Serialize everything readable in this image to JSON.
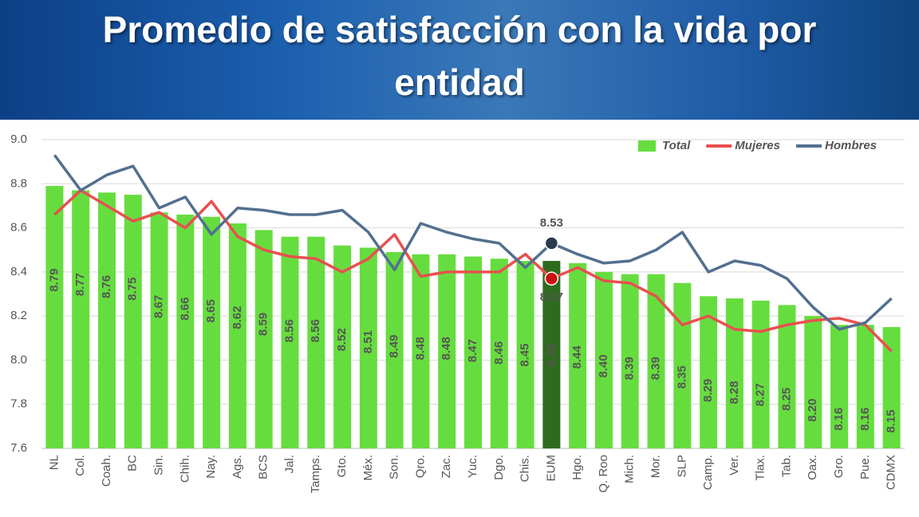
{
  "chart_data": {
    "type": "bar",
    "title": "Promedio de satisfacción con la vida por entidad",
    "categories": [
      "NL",
      "Col.",
      "Coah.",
      "BC",
      "Sin.",
      "Chih.",
      "Nay.",
      "Ags.",
      "BCS",
      "Jal.",
      "Tamps.",
      "Gto.",
      "Méx.",
      "Son.",
      "Qro.",
      "Zac.",
      "Yuc.",
      "Dgo.",
      "Chis.",
      "EUM",
      "Hgo.",
      "Q. Roo",
      "Mich.",
      "Mor.",
      "SLP",
      "Camp.",
      "Ver.",
      "Tlax.",
      "Tab.",
      "Oax.",
      "Gro.",
      "Pue.",
      "CDMX"
    ],
    "series": [
      {
        "name": "Total",
        "type": "bar",
        "color": "#66dd3f",
        "colors": [
          "#66dd3f",
          "#66dd3f",
          "#66dd3f",
          "#66dd3f",
          "#66dd3f",
          "#66dd3f",
          "#66dd3f",
          "#66dd3f",
          "#66dd3f",
          "#66dd3f",
          "#66dd3f",
          "#66dd3f",
          "#66dd3f",
          "#66dd3f",
          "#66dd3f",
          "#66dd3f",
          "#66dd3f",
          "#66dd3f",
          "#66dd3f",
          "#2f6b1e",
          "#66dd3f",
          "#66dd3f",
          "#66dd3f",
          "#66dd3f",
          "#66dd3f",
          "#66dd3f",
          "#66dd3f",
          "#66dd3f",
          "#66dd3f",
          "#66dd3f",
          "#66dd3f",
          "#66dd3f",
          "#66dd3f"
        ],
        "values": [
          8.79,
          8.77,
          8.76,
          8.75,
          8.67,
          8.66,
          8.65,
          8.62,
          8.59,
          8.56,
          8.56,
          8.52,
          8.51,
          8.49,
          8.48,
          8.48,
          8.47,
          8.46,
          8.45,
          8.45,
          8.44,
          8.4,
          8.39,
          8.39,
          8.35,
          8.29,
          8.28,
          8.27,
          8.25,
          8.2,
          8.16,
          8.16,
          8.15
        ],
        "value_labels": [
          "8.79",
          "8.77",
          "8.76",
          "8.75",
          "8.67",
          "8.66",
          "8.65",
          "8.62",
          "8.59",
          "8.56",
          "8.56",
          "8.52",
          "8.51",
          "8.49",
          "8.48",
          "8.48",
          "8.47",
          "8.46",
          "8.45",
          "8.45",
          "8.44",
          "8.40",
          "8.39",
          "8.39",
          "8.35",
          "8.29",
          "8.28",
          "8.27",
          "8.25",
          "8.20",
          "8.16",
          "8.16",
          "8.15"
        ]
      },
      {
        "name": "Mujeres",
        "type": "line",
        "color": "#e8504f",
        "values": [
          8.66,
          8.77,
          8.7,
          8.63,
          8.67,
          8.6,
          8.72,
          8.56,
          8.5,
          8.47,
          8.46,
          8.4,
          8.46,
          8.57,
          8.38,
          8.4,
          8.4,
          8.4,
          8.48,
          8.37,
          8.42,
          8.36,
          8.35,
          8.29,
          8.16,
          8.2,
          8.14,
          8.13,
          8.16,
          8.18,
          8.19,
          8.16,
          8.04
        ]
      },
      {
        "name": "Hombres",
        "type": "line",
        "color": "#52708f",
        "values": [
          8.93,
          8.77,
          8.84,
          8.88,
          8.69,
          8.74,
          8.57,
          8.69,
          8.68,
          8.66,
          8.66,
          8.68,
          8.58,
          8.41,
          8.62,
          8.58,
          8.55,
          8.53,
          8.42,
          8.53,
          8.48,
          8.44,
          8.45,
          8.5,
          8.58,
          8.4,
          8.45,
          8.43,
          8.37,
          8.24,
          8.14,
          8.17,
          8.28
        ]
      }
    ],
    "ylim": [
      7.6,
      9.0
    ],
    "yticks": [
      7.6,
      7.8,
      {
        "value": 8,
        "label": "8.0"
      },
      8.2,
      8.4,
      8.6,
      8.8,
      {
        "value": 9,
        "label": "9.0"
      }
    ],
    "grid": true,
    "legend": "top-right"
  }
}
